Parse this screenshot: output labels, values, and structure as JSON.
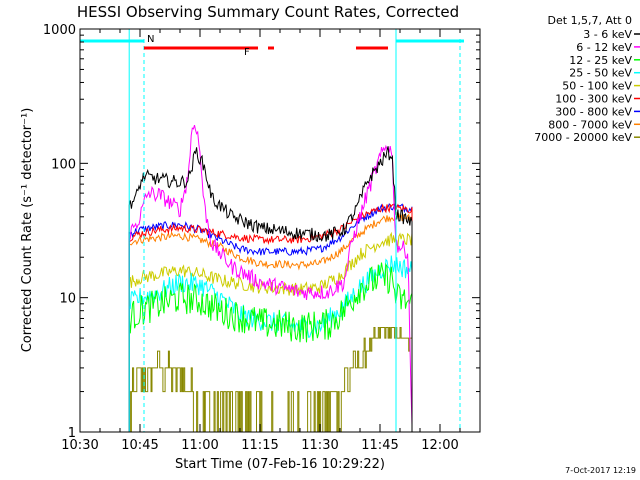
{
  "chart_data": {
    "type": "line",
    "title": "HESSI Observing Summary Count Rates, Corrected",
    "xlabel": "Start Time (07-Feb-16 10:29:22)",
    "ylabel": "Corrected Count Rate (s⁻¹ detector⁻¹)",
    "x_unit": "minutes after 10:30 UT",
    "xlim": [
      0,
      100
    ],
    "ylim": [
      1,
      1000
    ],
    "yscale": "log",
    "x_ticks": [
      {
        "x": 0,
        "label": "10:30"
      },
      {
        "x": 15,
        "label": "10:45"
      },
      {
        "x": 30,
        "label": "11:00"
      },
      {
        "x": 45,
        "label": "11:15"
      },
      {
        "x": 60,
        "label": "11:30"
      },
      {
        "x": 75,
        "label": "11:45"
      },
      {
        "x": 90,
        "label": "12:00"
      }
    ],
    "y_ticks": [
      {
        "y": 1,
        "label": "1"
      },
      {
        "y": 10,
        "label": "10"
      },
      {
        "y": 100,
        "label": "100"
      },
      {
        "y": 1000,
        "label": "1000"
      }
    ],
    "legend_title": "Det 1,5,7, Att 0",
    "legend_position": "right",
    "timestamp": "7-Oct-2017 12:19",
    "flags": [
      {
        "label": "N",
        "color": "#00ffff",
        "segments": [
          [
            0,
            16
          ],
          [
            79,
            96
          ]
        ]
      },
      {
        "label": "F",
        "color": "#ff0000",
        "segments": [
          [
            16,
            44.5
          ],
          [
            47,
            48.5
          ],
          [
            69,
            77
          ]
        ]
      }
    ],
    "markers": {
      "solid": [
        0,
        12.3,
        79
      ],
      "dashed": [
        16,
        95
      ],
      "color": "#00ffff"
    },
    "series": [
      {
        "name": "3 - 6 keV",
        "color": "#000000",
        "noise": 0.05,
        "start": 12.3,
        "points": [
          [
            12.3,
            50
          ],
          [
            14,
            55
          ],
          [
            15,
            70
          ],
          [
            16,
            80
          ],
          [
            20,
            76
          ],
          [
            25,
            72
          ],
          [
            27,
            75
          ],
          [
            28,
            95
          ],
          [
            29,
            125
          ],
          [
            31,
            95
          ],
          [
            33,
            55
          ],
          [
            38,
            40
          ],
          [
            45,
            33
          ],
          [
            55,
            30
          ],
          [
            62,
            29
          ],
          [
            66,
            32
          ],
          [
            69,
            45
          ],
          [
            72,
            75
          ],
          [
            75,
            100
          ],
          [
            77,
            120
          ],
          [
            78,
            115
          ],
          [
            79,
            42
          ],
          [
            82,
            38
          ],
          [
            83,
            35
          ]
        ]
      },
      {
        "name": "6 - 12 keV",
        "color": "#ff00ff",
        "noise": 0.06,
        "start": 12.3,
        "points": [
          [
            12.3,
            30
          ],
          [
            14,
            35
          ],
          [
            15,
            40
          ],
          [
            16,
            50
          ],
          [
            17,
            60
          ],
          [
            20,
            58
          ],
          [
            25,
            45
          ],
          [
            27,
            80
          ],
          [
            28,
            180
          ],
          [
            29,
            200
          ],
          [
            30,
            120
          ],
          [
            31,
            50
          ],
          [
            33,
            25
          ],
          [
            38,
            17
          ],
          [
            45,
            13
          ],
          [
            55,
            11
          ],
          [
            62,
            11
          ],
          [
            66,
            13
          ],
          [
            68,
            26
          ],
          [
            72,
            62
          ],
          [
            75,
            110
          ],
          [
            77,
            140
          ],
          [
            78,
            120
          ],
          [
            79,
            25
          ],
          [
            82,
            22
          ],
          [
            83,
            1
          ]
        ]
      },
      {
        "name": "12 - 25 keV",
        "color": "#00ff00",
        "noise": 0.12,
        "start": 12.3,
        "points": [
          [
            12.3,
            7
          ],
          [
            15,
            8
          ],
          [
            20,
            9
          ],
          [
            25,
            10
          ],
          [
            30,
            9.5
          ],
          [
            35,
            8
          ],
          [
            45,
            6.5
          ],
          [
            55,
            6
          ],
          [
            62,
            6.3
          ],
          [
            66,
            8
          ],
          [
            70,
            12
          ],
          [
            75,
            14
          ],
          [
            78,
            14
          ],
          [
            79,
            10
          ],
          [
            83,
            9
          ]
        ]
      },
      {
        "name": "25 - 50 keV",
        "color": "#00ffff",
        "noise": 0.08,
        "start": 12.3,
        "points": [
          [
            12.3,
            9
          ],
          [
            15,
            10
          ],
          [
            20,
            11
          ],
          [
            25,
            13
          ],
          [
            30,
            12.5
          ],
          [
            35,
            10
          ],
          [
            40,
            7.5
          ],
          [
            45,
            6.8
          ],
          [
            55,
            6
          ],
          [
            60,
            6.2
          ],
          [
            65,
            8
          ],
          [
            70,
            12
          ],
          [
            75,
            16
          ],
          [
            78,
            18
          ],
          [
            80,
            17
          ],
          [
            83,
            16
          ]
        ]
      },
      {
        "name": "50 - 100 keV",
        "color": "#cccc00",
        "noise": 0.05,
        "start": 12.3,
        "points": [
          [
            12.3,
            13
          ],
          [
            15,
            14
          ],
          [
            20,
            15
          ],
          [
            25,
            16
          ],
          [
            30,
            15
          ],
          [
            35,
            13.5
          ],
          [
            45,
            12
          ],
          [
            55,
            11.5
          ],
          [
            60,
            12
          ],
          [
            65,
            14.5
          ],
          [
            70,
            21
          ],
          [
            75,
            26
          ],
          [
            78,
            27
          ],
          [
            83,
            27
          ]
        ]
      },
      {
        "name": "100 - 300 keV",
        "color": "#ff0000",
        "noise": 0.03,
        "start": 12.3,
        "points": [
          [
            12.3,
            28
          ],
          [
            15,
            30
          ],
          [
            20,
            32
          ],
          [
            25,
            33
          ],
          [
            30,
            32
          ],
          [
            35,
            30
          ],
          [
            40,
            28
          ],
          [
            45,
            27
          ],
          [
            55,
            27
          ],
          [
            60,
            28.5
          ],
          [
            65,
            32
          ],
          [
            70,
            40
          ],
          [
            75,
            46
          ],
          [
            78,
            47
          ],
          [
            83,
            45
          ]
        ]
      },
      {
        "name": "300 - 800 keV",
        "color": "#0000ff",
        "noise": 0.03,
        "start": 12.3,
        "points": [
          [
            12.3,
            30
          ],
          [
            15,
            32
          ],
          [
            20,
            34
          ],
          [
            25,
            35
          ],
          [
            30,
            32
          ],
          [
            35,
            27
          ],
          [
            40,
            23
          ],
          [
            45,
            22
          ],
          [
            55,
            22
          ],
          [
            60,
            23
          ],
          [
            65,
            28
          ],
          [
            70,
            38
          ],
          [
            75,
            46
          ],
          [
            78,
            48
          ],
          [
            83,
            46
          ]
        ]
      },
      {
        "name": "800 - 7000 keV",
        "color": "#ff8000",
        "noise": 0.03,
        "start": 12.3,
        "points": [
          [
            12.3,
            26
          ],
          [
            15,
            27
          ],
          [
            20,
            28
          ],
          [
            25,
            29
          ],
          [
            30,
            27
          ],
          [
            35,
            24
          ],
          [
            40,
            20
          ],
          [
            45,
            18
          ],
          [
            55,
            17.5
          ],
          [
            60,
            18
          ],
          [
            65,
            22
          ],
          [
            70,
            30
          ],
          [
            75,
            38
          ],
          [
            78,
            40
          ],
          [
            83,
            39
          ]
        ]
      },
      {
        "name": "7000 - 20000 keV",
        "color": "#888800",
        "noise": 0,
        "start": 12.3,
        "points": [
          [
            12.3,
            1.5
          ],
          [
            15,
            2.5
          ],
          [
            20,
            3
          ],
          [
            25,
            2.5
          ],
          [
            30,
            1.5
          ],
          [
            40,
            1.2
          ],
          [
            50,
            1
          ],
          [
            60,
            1.5
          ],
          [
            65,
            2
          ],
          [
            70,
            3.5
          ],
          [
            75,
            5.5
          ],
          [
            78,
            5.5
          ],
          [
            80,
            5
          ],
          [
            83,
            4.5
          ]
        ]
      }
    ]
  }
}
